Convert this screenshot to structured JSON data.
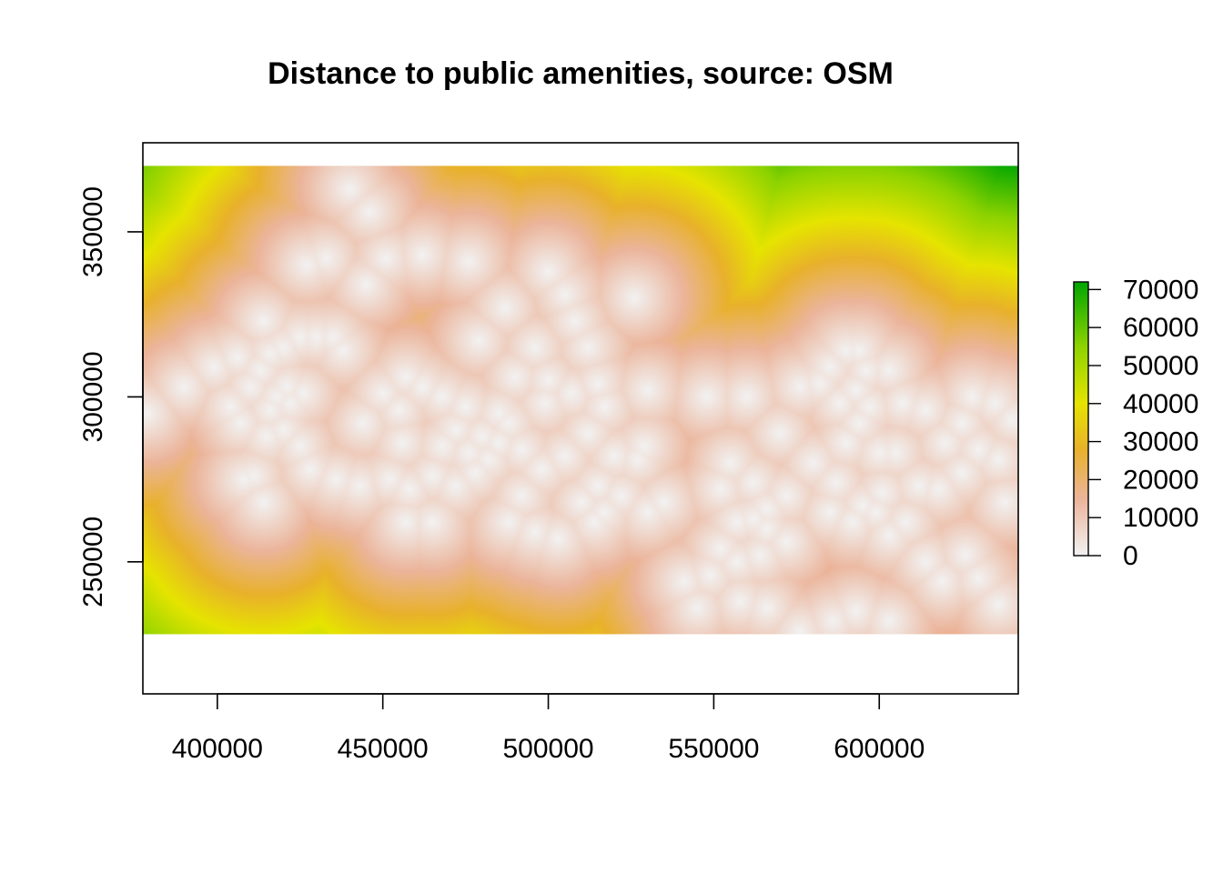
{
  "chart_data": {
    "type": "heatmap",
    "title": "Distance to public amenities, source: OSM",
    "xlabel": "",
    "ylabel": "",
    "xlim": [
      377500,
      642000
    ],
    "ylim": [
      210000,
      377000
    ],
    "raster_extent": {
      "x": [
        377500,
        642000
      ],
      "y": [
        228000,
        370000
      ]
    },
    "x_ticks": [
      400000,
      450000,
      500000,
      550000,
      600000
    ],
    "x_tick_labels": [
      "400000",
      "450000",
      "500000",
      "550000",
      "600000"
    ],
    "y_ticks": [
      250000,
      300000,
      350000
    ],
    "y_tick_labels": [
      "250000",
      "300000",
      "350000"
    ],
    "legend": {
      "placement": "right",
      "range": [
        0,
        72000
      ],
      "ticks": [
        0,
        10000,
        20000,
        30000,
        40000,
        50000,
        60000,
        70000
      ],
      "tick_labels": [
        "0",
        "10000",
        "20000",
        "30000",
        "40000",
        "50000",
        "60000",
        "70000"
      ],
      "color_stops": [
        {
          "value": 0,
          "color": "#f2f2f2"
        },
        {
          "value": 15000,
          "color": "#ebb49a"
        },
        {
          "value": 28000,
          "color": "#e8b12b"
        },
        {
          "value": 40000,
          "color": "#e6e400"
        },
        {
          "value": 55000,
          "color": "#8ed300"
        },
        {
          "value": 72000,
          "color": "#00a600"
        }
      ]
    },
    "amenities": [
      [
        379000,
        295000
      ],
      [
        390000,
        303000
      ],
      [
        399000,
        309000
      ],
      [
        406000,
        312000
      ],
      [
        404000,
        297000
      ],
      [
        407000,
        292000
      ],
      [
        410000,
        303000
      ],
      [
        413000,
        308000
      ],
      [
        416000,
        313000
      ],
      [
        420000,
        315000
      ],
      [
        425000,
        318000
      ],
      [
        430000,
        318000
      ],
      [
        435000,
        318000
      ],
      [
        438000,
        314000
      ],
      [
        414000,
        323000
      ],
      [
        418000,
        300000
      ],
      [
        422000,
        298000
      ],
      [
        415000,
        288000
      ],
      [
        420000,
        290000
      ],
      [
        425000,
        285000
      ],
      [
        408000,
        275000
      ],
      [
        414000,
        268000
      ],
      [
        411000,
        276000
      ],
      [
        421000,
        303000
      ],
      [
        426000,
        301000
      ],
      [
        416000,
        296000
      ],
      [
        427000,
        340000
      ],
      [
        433000,
        342000
      ],
      [
        440000,
        363000
      ],
      [
        446000,
        356000
      ],
      [
        445000,
        334000
      ],
      [
        451000,
        342000
      ],
      [
        462000,
        343000
      ],
      [
        476000,
        341000
      ],
      [
        457000,
        306000
      ],
      [
        450000,
        301000
      ],
      [
        455000,
        296000
      ],
      [
        462000,
        303000
      ],
      [
        468000,
        300000
      ],
      [
        475000,
        297000
      ],
      [
        472000,
        290000
      ],
      [
        468000,
        285000
      ],
      [
        476000,
        283000
      ],
      [
        480000,
        288000
      ],
      [
        485000,
        286000
      ],
      [
        482000,
        281000
      ],
      [
        488000,
        292000
      ],
      [
        492000,
        284000
      ],
      [
        485000,
        295000
      ],
      [
        478000,
        277000
      ],
      [
        472000,
        273000
      ],
      [
        465000,
        276000
      ],
      [
        458000,
        272000
      ],
      [
        452000,
        275000
      ],
      [
        456000,
        286000
      ],
      [
        444000,
        292000
      ],
      [
        436000,
        275000
      ],
      [
        428000,
        278000
      ],
      [
        443000,
        273000
      ],
      [
        462000,
        303000
      ],
      [
        479000,
        317000
      ],
      [
        487000,
        327000
      ],
      [
        496000,
        315000
      ],
      [
        500000,
        338000
      ],
      [
        505000,
        331000
      ],
      [
        508000,
        323000
      ],
      [
        512000,
        315000
      ],
      [
        500000,
        305000
      ],
      [
        507000,
        301000
      ],
      [
        515000,
        304000
      ],
      [
        517000,
        297000
      ],
      [
        512000,
        289000
      ],
      [
        505000,
        282000
      ],
      [
        498000,
        278000
      ],
      [
        492000,
        270000
      ],
      [
        488000,
        262000
      ],
      [
        496000,
        259000
      ],
      [
        503000,
        257000
      ],
      [
        510000,
        268000
      ],
      [
        515000,
        273000
      ],
      [
        520000,
        282000
      ],
      [
        527000,
        281000
      ],
      [
        517000,
        265000
      ],
      [
        522000,
        270000
      ],
      [
        526000,
        330000
      ],
      [
        530000,
        302000
      ],
      [
        465000,
        262000
      ],
      [
        457000,
        262000
      ],
      [
        535000,
        268000
      ],
      [
        530000,
        265000
      ],
      [
        499000,
        298000
      ],
      [
        490000,
        306000
      ],
      [
        514000,
        262000
      ],
      [
        529000,
        285000
      ],
      [
        560000,
        300000
      ],
      [
        548000,
        300000
      ],
      [
        555000,
        280000
      ],
      [
        552000,
        272000
      ],
      [
        562000,
        274000
      ],
      [
        570000,
        289000
      ],
      [
        576000,
        303000
      ],
      [
        572000,
        270000
      ],
      [
        566000,
        266000
      ],
      [
        562000,
        263000
      ],
      [
        557000,
        262000
      ],
      [
        566000,
        260000
      ],
      [
        572000,
        256000
      ],
      [
        564000,
        252000
      ],
      [
        557000,
        250000
      ],
      [
        552000,
        254000
      ],
      [
        549000,
        246000
      ],
      [
        545000,
        236000
      ],
      [
        541000,
        244000
      ],
      [
        558000,
        238000
      ],
      [
        566000,
        236000
      ],
      [
        576000,
        229000
      ],
      [
        587000,
        274000
      ],
      [
        580000,
        280000
      ],
      [
        590000,
        286000
      ],
      [
        588000,
        298000
      ],
      [
        582000,
        304000
      ],
      [
        585000,
        309000
      ],
      [
        590000,
        314000
      ],
      [
        594000,
        314000
      ],
      [
        596000,
        308000
      ],
      [
        593000,
        302000
      ],
      [
        597000,
        297000
      ],
      [
        594000,
        292000
      ],
      [
        600000,
        283000
      ],
      [
        601000,
        271000
      ],
      [
        595000,
        267000
      ],
      [
        592000,
        262000
      ],
      [
        585000,
        265000
      ],
      [
        607000,
        298000
      ],
      [
        605000,
        283000
      ],
      [
        603000,
        308000
      ],
      [
        614000,
        296000
      ],
      [
        620000,
        286000
      ],
      [
        625000,
        292000
      ],
      [
        628000,
        300000
      ],
      [
        635000,
        298000
      ],
      [
        640000,
        293000
      ],
      [
        630000,
        284000
      ],
      [
        625000,
        277000
      ],
      [
        618000,
        272000
      ],
      [
        612000,
        273000
      ],
      [
        608000,
        262000
      ],
      [
        603000,
        258000
      ],
      [
        599000,
        265000
      ],
      [
        626000,
        252000
      ],
      [
        630000,
        245000
      ],
      [
        636000,
        237000
      ],
      [
        619000,
        244000
      ],
      [
        614000,
        250000
      ],
      [
        593000,
        235000
      ],
      [
        603000,
        232000
      ],
      [
        586000,
        232000
      ],
      [
        636000,
        281000
      ],
      [
        638000,
        268000
      ]
    ]
  }
}
